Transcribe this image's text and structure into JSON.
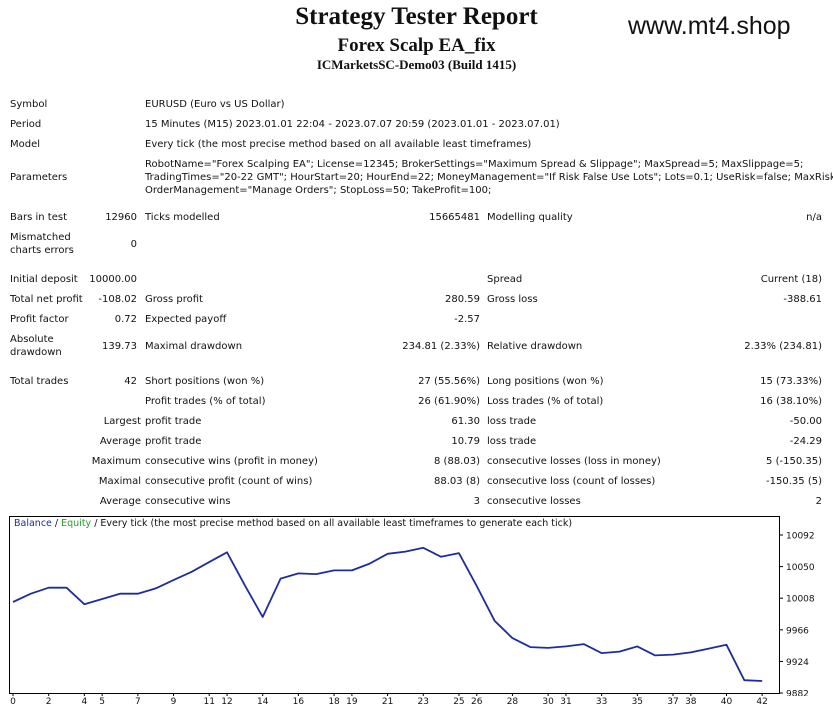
{
  "header": {
    "title": "Strategy Tester Report",
    "ea_name": "Forex Scalp EA_fix",
    "server": "ICMarketsSC-Demo03 (Build 1415)",
    "brand": "www.mt4.shop"
  },
  "info": {
    "symbol_label": "Symbol",
    "symbol": "EURUSD (Euro vs US Dollar)",
    "period_label": "Period",
    "period": "15 Minutes (M15) 2023.01.01 22:04 - 2023.07.07 20:59 (2023.01.01 - 2023.07.01)",
    "model_label": "Model",
    "model": "Every tick (the most precise method based on all available least timeframes)",
    "parameters_label": "Parameters",
    "parameters": [
      "RobotName=\"Forex Scalping EA\"; License=12345; BrokerSettings=\"Maximum Spread & Slippage\"; MaxSpread=5; MaxSlippage=5;",
      "TradingTimes=\"20-22 GMT\"; HourStart=20; HourEnd=22; MoneyManagement=\"If Risk False Use Lots\"; Lots=0.1; UseRisk=false; MaxRisk=2;",
      "OrderManagement=\"Manage Orders\"; StopLoss=50; TakeProfit=100;"
    ]
  },
  "stats": {
    "bars_label": "Bars in test",
    "bars": "12960",
    "ticks_label": "Ticks modelled",
    "ticks": "15665481",
    "quality_label": "Modelling quality",
    "quality": "n/a",
    "mismatch_label_1": "Mismatched",
    "mismatch_label_2": "charts errors",
    "mismatch": "0",
    "deposit_label": "Initial deposit",
    "deposit": "10000.00",
    "spread_label": "Spread",
    "spread": "Current (18)",
    "net_label": "Total net profit",
    "net": "-108.02",
    "gross_profit_label": "Gross profit",
    "gross_profit": "280.59",
    "gross_loss_label": "Gross loss",
    "gross_loss": "-388.61",
    "pf_label": "Profit factor",
    "pf": "0.72",
    "ep_label": "Expected payoff",
    "ep": "-2.57",
    "abs_dd_label_1": "Absolute",
    "abs_dd_label_2": "drawdown",
    "abs_dd": "139.73",
    "max_dd_label": "Maximal drawdown",
    "max_dd": "234.81 (2.33%)",
    "rel_dd_label": "Relative drawdown",
    "rel_dd": "2.33% (234.81)",
    "trades_label": "Total trades",
    "trades": "42",
    "short_label": "Short positions (won %)",
    "short": "27 (55.56%)",
    "long_label": "Long positions (won %)",
    "long": "15 (73.33%)",
    "pt_label": "Profit trades (% of total)",
    "pt": "26 (61.90%)",
    "lt_label": "Loss trades (% of total)",
    "lt": "16 (38.10%)",
    "largest": "Largest",
    "largest_pt_label": "profit trade",
    "largest_pt": "61.30",
    "largest_lt_label": "loss trade",
    "largest_lt": "-50.00",
    "average": "Average",
    "avg_pt_label": "profit trade",
    "avg_pt": "10.79",
    "avg_lt_label": "loss trade",
    "avg_lt": "-24.29",
    "maximum": "Maximum",
    "max_cw_label": "consecutive wins (profit in money)",
    "max_cw": "8 (88.03)",
    "max_cl_label": "consecutive losses (loss in money)",
    "max_cl": "5 (-150.35)",
    "maximal": "Maximal",
    "mx_cp_label": "consecutive profit (count of wins)",
    "mx_cp": "88.03 (8)",
    "mx_cl_label": "consecutive loss (count of losses)",
    "mx_cl": "-150.35 (5)",
    "average2": "Average",
    "avg_cw_label": "consecutive wins",
    "avg_cw": "3",
    "avg_cl_label": "consecutive losses",
    "avg_cl": "2"
  },
  "chart_legend": {
    "balance": "Balance",
    "sep1": " / ",
    "equity": "Equity",
    "rest": " / Every tick (the most precise method based on all available least timeframes to generate each tick)"
  },
  "chart_data": {
    "type": "line",
    "series": [
      {
        "name": "Balance",
        "x": [
          0,
          1,
          2,
          3,
          4,
          5,
          6,
          7,
          8,
          9,
          10,
          11,
          12,
          13,
          14,
          15,
          16,
          17,
          18,
          19,
          20,
          21,
          22,
          23,
          24,
          25,
          26,
          27,
          28,
          29,
          30,
          31,
          32,
          33,
          34,
          35,
          36,
          37,
          38,
          39,
          40,
          41,
          42
        ],
        "values": [
          10003,
          10014,
          10022,
          10022,
          10000,
          10007,
          10014,
          10014,
          10021,
          10032,
          10043,
          10056,
          10069,
          10025,
          9983,
          10034,
          10041,
          10040,
          10045,
          10045,
          10054,
          10067,
          10070,
          10075,
          10063,
          10068,
          10024,
          9978,
          9955,
          9943,
          9942,
          9944,
          9947,
          9935,
          9937,
          9944,
          9932,
          9933,
          9936,
          9941,
          9946,
          9899,
          9898
        ]
      }
    ],
    "y_ticks": [
      10092,
      10050,
      10008,
      9966,
      9924,
      9882
    ],
    "x_ticks": [
      0,
      2,
      4,
      5,
      7,
      9,
      11,
      12,
      14,
      16,
      18,
      19,
      21,
      23,
      25,
      26,
      28,
      30,
      31,
      33,
      35,
      37,
      38,
      40,
      42
    ],
    "ylim": [
      9882,
      10110
    ],
    "xlim": [
      0,
      43
    ],
    "colors": {
      "balance": "#1f2d9c",
      "equity": "#2a9c2a"
    }
  }
}
